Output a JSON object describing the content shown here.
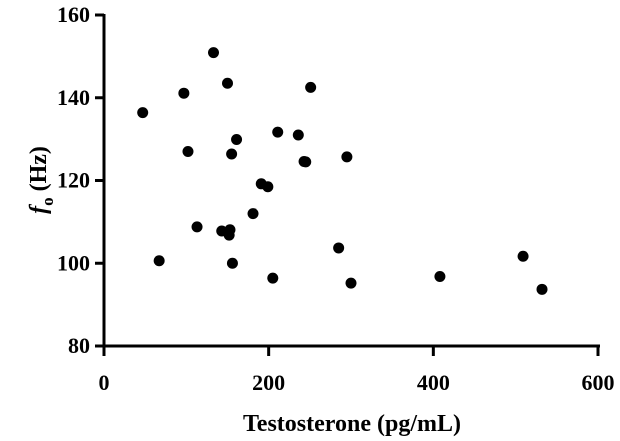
{
  "chart_data": {
    "type": "scatter",
    "title": "",
    "xlabel": "Testosterone (pg/mL)",
    "ylabel": {
      "main": "f",
      "sub": "o",
      "unit": " (Hz)"
    },
    "xlim": [
      0,
      600
    ],
    "ylim": [
      80,
      160
    ],
    "xticks": [
      0,
      200,
      400,
      600
    ],
    "yticks": [
      80,
      100,
      120,
      140,
      160
    ],
    "grid": false,
    "legend": "none",
    "marker_color": "#000000",
    "points": [
      {
        "x": 47,
        "y": 136.4
      },
      {
        "x": 67,
        "y": 100.6
      },
      {
        "x": 97,
        "y": 141.1
      },
      {
        "x": 102,
        "y": 127.0
      },
      {
        "x": 113,
        "y": 108.8
      },
      {
        "x": 133,
        "y": 150.9
      },
      {
        "x": 143,
        "y": 107.8
      },
      {
        "x": 150,
        "y": 143.5
      },
      {
        "x": 152,
        "y": 106.8
      },
      {
        "x": 153,
        "y": 108.1
      },
      {
        "x": 155,
        "y": 126.4
      },
      {
        "x": 156,
        "y": 100.0
      },
      {
        "x": 161,
        "y": 129.9
      },
      {
        "x": 181,
        "y": 112.0
      },
      {
        "x": 191,
        "y": 119.2
      },
      {
        "x": 199,
        "y": 118.5
      },
      {
        "x": 205,
        "y": 96.4
      },
      {
        "x": 211,
        "y": 131.7
      },
      {
        "x": 236,
        "y": 131.0
      },
      {
        "x": 243,
        "y": 124.6
      },
      {
        "x": 245,
        "y": 124.5
      },
      {
        "x": 251,
        "y": 142.5
      },
      {
        "x": 285,
        "y": 103.7
      },
      {
        "x": 295,
        "y": 125.7
      },
      {
        "x": 300,
        "y": 95.2
      },
      {
        "x": 408,
        "y": 96.8
      },
      {
        "x": 509,
        "y": 101.7
      },
      {
        "x": 532,
        "y": 93.7
      }
    ]
  }
}
